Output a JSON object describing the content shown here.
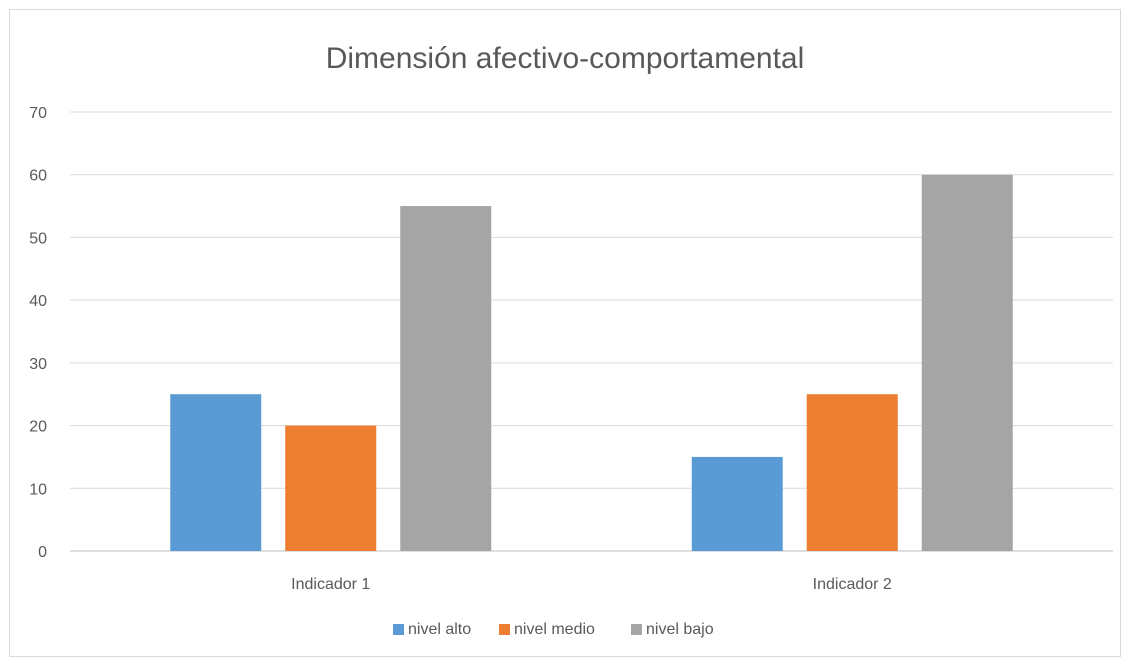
{
  "chart_data": {
    "type": "bar",
    "title": "Dimensión afectivo-comportamental",
    "categories": [
      "Indicador 1",
      "Indicador 2"
    ],
    "series": [
      {
        "name": "nivel alto",
        "values": [
          25,
          15
        ],
        "color": "#5b9bd5"
      },
      {
        "name": "nivel medio",
        "values": [
          20,
          25
        ],
        "color": "#ed7d31"
      },
      {
        "name": "nivel bajo",
        "values": [
          55,
          60
        ],
        "color": "#a5a5a5"
      }
    ],
    "ylim": [
      0,
      70
    ],
    "yticks": [
      0,
      10,
      20,
      30,
      40,
      50,
      60,
      70
    ],
    "grid": true,
    "legend_position": "bottom"
  }
}
